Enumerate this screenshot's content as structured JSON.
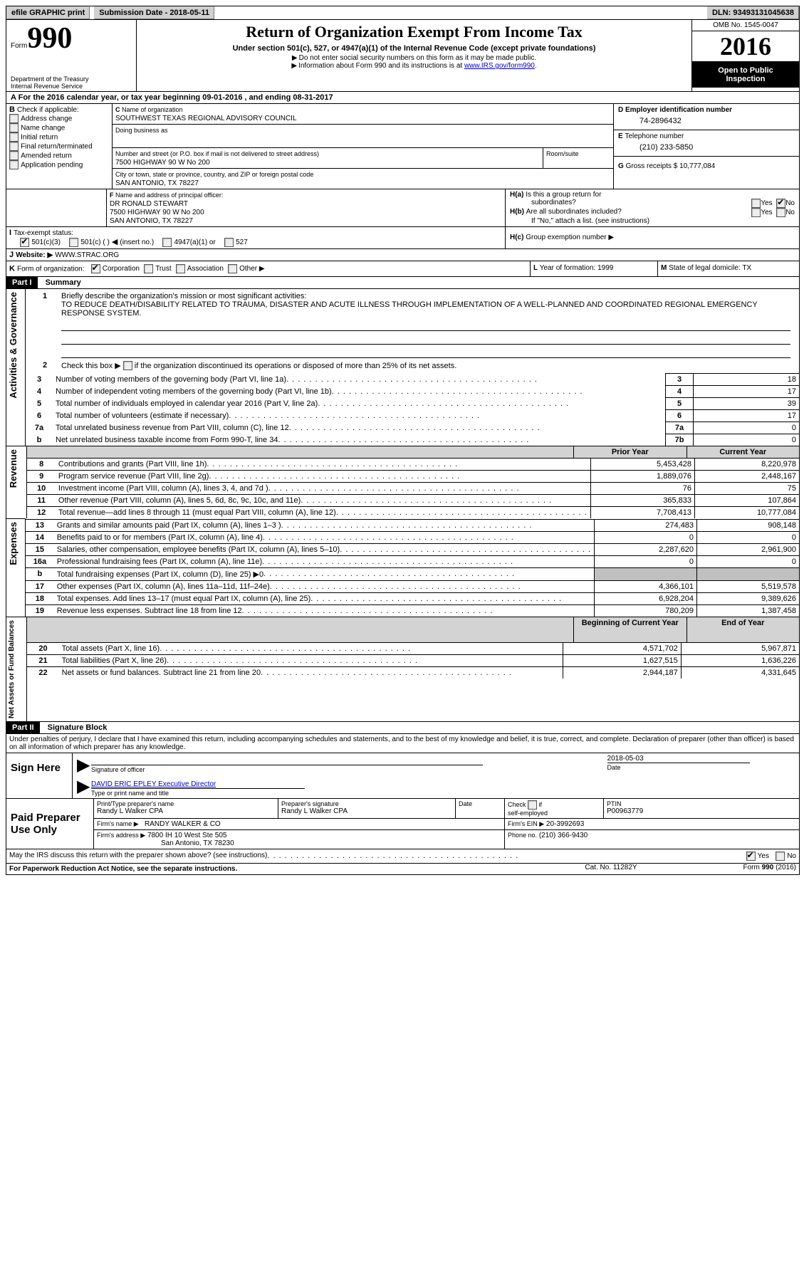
{
  "topbar": {
    "efile": "efile GRAPHIC print",
    "submission": "Submission Date - 2018-05-11",
    "dln": "DLN: 93493131045638"
  },
  "header": {
    "form_word": "Form",
    "form_num": "990",
    "dept": "Department of the Treasury",
    "irs": "Internal Revenue Service",
    "title": "Return of Organization Exempt From Income Tax",
    "subtitle": "Under section 501(c), 527, or 4947(a)(1) of the Internal Revenue Code (except private foundations)",
    "note1": "Do not enter social security numbers on this form as it may be made public.",
    "note2_pre": "Information about Form 990 and its instructions is at ",
    "note2_link": "www.IRS.gov/form990",
    "omb": "OMB No. 1545-0047",
    "year": "2016",
    "open1": "Open to Public",
    "open2": "Inspection"
  },
  "sectionA": {
    "a_line": "For the 2016 calendar year, or tax year beginning 09-01-2016   , and ending 08-31-2017",
    "b_label": "Check if applicable:",
    "b_opts": [
      "Address change",
      "Name change",
      "Initial return",
      "Final return/terminated",
      "Amended return",
      "Application pending"
    ],
    "c_label": "Name of organization",
    "c_name": "SOUTHWEST TEXAS REGIONAL ADVISORY COUNCIL",
    "dba_label": "Doing business as",
    "street_label": "Number and street (or P.O. box if mail is not delivered to street address)",
    "room_label": "Room/suite",
    "street": "7500 HIGHWAY 90 W No 200",
    "city_label": "City or town, state or province, country, and ZIP or foreign postal code",
    "city": "SAN ANTONIO, TX  78227",
    "d_label": "Employer identification number",
    "d_val": "74-2896432",
    "e_label": "Telephone number",
    "e_val": "(210) 233-5850",
    "g_label": "Gross receipts $",
    "g_val": "10,777,084",
    "f_label": "Name and address of principal officer:",
    "f_name": "DR RONALD STEWART",
    "f_addr1": "7500 HIGHWAY 90 W No 200",
    "f_addr2": "SAN ANTONIO, TX  78227",
    "ha_q": "Is this a group return for",
    "ha_sub": "subordinates?",
    "hb_q": "Are all subordinates included?",
    "h_note": "If \"No,\" attach a list. (see instructions)",
    "hc": "Group exemption number ▶",
    "i_label": "Tax-exempt status:",
    "i_501c3": "501(c)(3)",
    "i_501c": "501(c) ( )",
    "i_insert": "(insert no.)",
    "i_4947": "4947(a)(1) or",
    "i_527": "527",
    "j_label": "Website: ▶",
    "j_val": "WWW.STRAC.ORG",
    "k_label": "Form of organization:",
    "k_corp": "Corporation",
    "k_trust": "Trust",
    "k_assoc": "Association",
    "k_other": "Other ▶",
    "l_label": "Year of formation:",
    "l_val": "1999",
    "m_label": "State of legal domicile:",
    "m_val": "TX"
  },
  "part1": {
    "label": "Part I",
    "title": "Summary",
    "q1": "Briefly describe the organization's mission or most significant activities:",
    "mission": "TO REDUCE DEATH/DISABILITY RELATED TO TRAUMA, DISASTER AND ACUTE ILLNESS THROUGH IMPLEMENTATION OF A WELL-PLANNED AND COORDINATED REGIONAL EMERGENCY RESPONSE SYSTEM.",
    "q2": "Check this box ▶        if the organization discontinued its operations or disposed of more than 25% of its net assets.",
    "side_gov": "Activities & Governance",
    "side_rev": "Revenue",
    "side_exp": "Expenses",
    "side_net": "Net Assets or Fund Balances",
    "hdr_prior": "Prior Year",
    "hdr_curr": "Current Year",
    "hdr_boy": "Beginning of Current Year",
    "hdr_eoy": "End of Year",
    "lines_gov": [
      {
        "n": "3",
        "t": "Number of voting members of the governing body (Part VI, line 1a)",
        "box": "3",
        "v": "18"
      },
      {
        "n": "4",
        "t": "Number of independent voting members of the governing body (Part VI, line 1b)",
        "box": "4",
        "v": "17"
      },
      {
        "n": "5",
        "t": "Total number of individuals employed in calendar year 2016 (Part V, line 2a)",
        "box": "5",
        "v": "39"
      },
      {
        "n": "6",
        "t": "Total number of volunteers (estimate if necessary)",
        "box": "6",
        "v": "17"
      },
      {
        "n": "7a",
        "t": "Total unrelated business revenue from Part VIII, column (C), line 12",
        "box": "7a",
        "v": "0"
      },
      {
        "n": "b",
        "t": "Net unrelated business taxable income from Form 990-T, line 34",
        "box": "7b",
        "v": "0"
      }
    ],
    "lines_rev": [
      {
        "n": "8",
        "t": "Contributions and grants (Part VIII, line 1h)",
        "p": "5,453,428",
        "c": "8,220,978"
      },
      {
        "n": "9",
        "t": "Program service revenue (Part VIII, line 2g)",
        "p": "1,889,076",
        "c": "2,448,167"
      },
      {
        "n": "10",
        "t": "Investment income (Part VIII, column (A), lines 3, 4, and 7d )",
        "p": "76",
        "c": "75"
      },
      {
        "n": "11",
        "t": "Other revenue (Part VIII, column (A), lines 5, 6d, 8c, 9c, 10c, and 11e)",
        "p": "365,833",
        "c": "107,864"
      },
      {
        "n": "12",
        "t": "Total revenue—add lines 8 through 11 (must equal Part VIII, column (A), line 12)",
        "p": "7,708,413",
        "c": "10,777,084"
      }
    ],
    "lines_exp": [
      {
        "n": "13",
        "t": "Grants and similar amounts paid (Part IX, column (A), lines 1–3 )",
        "p": "274,483",
        "c": "908,148"
      },
      {
        "n": "14",
        "t": "Benefits paid to or for members (Part IX, column (A), line 4)",
        "p": "0",
        "c": "0"
      },
      {
        "n": "15",
        "t": "Salaries, other compensation, employee benefits (Part IX, column (A), lines 5–10)",
        "p": "2,287,620",
        "c": "2,961,900"
      },
      {
        "n": "16a",
        "t": "Professional fundraising fees (Part IX, column (A), line 11e)",
        "p": "0",
        "c": "0"
      },
      {
        "n": "b",
        "t": "Total fundraising expenses (Part IX, column (D), line 25) ▶0",
        "p": "grey",
        "c": "grey"
      },
      {
        "n": "17",
        "t": "Other expenses (Part IX, column (A), lines 11a–11d, 11f–24e)",
        "p": "4,366,101",
        "c": "5,519,578"
      },
      {
        "n": "18",
        "t": "Total expenses. Add lines 13–17 (must equal Part IX, column (A), line 25)",
        "p": "6,928,204",
        "c": "9,389,626"
      },
      {
        "n": "19",
        "t": "Revenue less expenses. Subtract line 18 from line 12",
        "p": "780,209",
        "c": "1,387,458"
      }
    ],
    "lines_net": [
      {
        "n": "20",
        "t": "Total assets (Part X, line 16)",
        "p": "4,571,702",
        "c": "5,967,871"
      },
      {
        "n": "21",
        "t": "Total liabilities (Part X, line 26)",
        "p": "1,627,515",
        "c": "1,636,226"
      },
      {
        "n": "22",
        "t": "Net assets or fund balances. Subtract line 21 from line 20",
        "p": "2,944,187",
        "c": "4,331,645"
      }
    ]
  },
  "part2": {
    "label": "Part II",
    "title": "Signature Block",
    "decl": "Under penalties of perjury, I declare that I have examined this return, including accompanying schedules and statements, and to the best of my knowledge and belief, it is true, correct, and complete. Declaration of preparer (other than officer) is based on all information of which preparer has any knowledge.",
    "sign_here": "Sign Here",
    "sig_officer": "Signature of officer",
    "sig_date_label": "Date",
    "sig_date": "2018-05-03",
    "sig_name": "DAVID ERIC EPLEY Executive Director",
    "sig_name_label": "Type or print name and title",
    "paid": "Paid Preparer Use Only",
    "p_name_label": "Print/Type preparer's name",
    "p_name": "Randy L Walker CPA",
    "p_sig_label": "Preparer's signature",
    "p_sig": "Randy L Walker CPA",
    "p_date_label": "Date",
    "p_check": "Check         if self-employed",
    "ptin_label": "PTIN",
    "ptin": "P00963779",
    "firm_name_label": "Firm's name      ▶",
    "firm_name": "RANDY WALKER & CO",
    "firm_ein_label": "Firm's EIN ▶",
    "firm_ein": "20-3992693",
    "firm_addr_label": "Firm's address ▶",
    "firm_addr1": "7800 IH 10 West Ste 505",
    "firm_addr2": "San Antonio, TX  78230",
    "phone_label": "Phone no.",
    "phone": "(210) 366-9430",
    "discuss": "May the IRS discuss this return with the preparer shown above? (see instructions)",
    "yes": "Yes",
    "no": "No"
  },
  "footer": {
    "paperwork": "For Paperwork Reduction Act Notice, see the separate instructions.",
    "cat": "Cat. No. 11282Y",
    "form": "Form 990 (2016)"
  }
}
